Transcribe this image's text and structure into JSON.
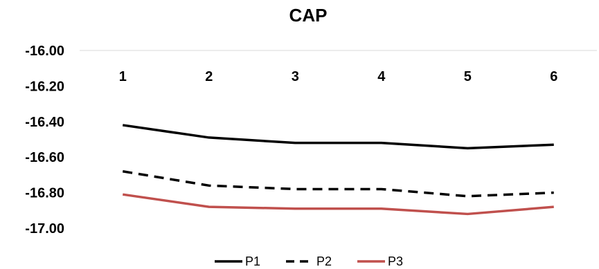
{
  "chart_data": {
    "type": "line",
    "title": "CAP",
    "xlabel": "",
    "ylabel": "",
    "categories": [
      "1",
      "2",
      "3",
      "4",
      "5",
      "6"
    ],
    "y_ticks": [
      "-16.00",
      "-16.20",
      "-16.40",
      "-16.60",
      "-16.80",
      "-17.00"
    ],
    "ylim": [
      -17.0,
      -16.0
    ],
    "x_axis_position": "top",
    "gridlines": false,
    "legend_position": "bottom",
    "series": [
      {
        "name": "P1",
        "values": [
          -16.42,
          -16.49,
          -16.52,
          -16.52,
          -16.55,
          -16.53
        ],
        "color": "#000000",
        "style": "solid"
      },
      {
        "name": "P2",
        "values": [
          -16.68,
          -16.76,
          -16.78,
          -16.78,
          -16.82,
          -16.8
        ],
        "color": "#000000",
        "style": "dashed"
      },
      {
        "name": "P3",
        "values": [
          -16.81,
          -16.88,
          -16.89,
          -16.89,
          -16.92,
          -16.88
        ],
        "color": "#c0504d",
        "style": "solid"
      }
    ]
  }
}
